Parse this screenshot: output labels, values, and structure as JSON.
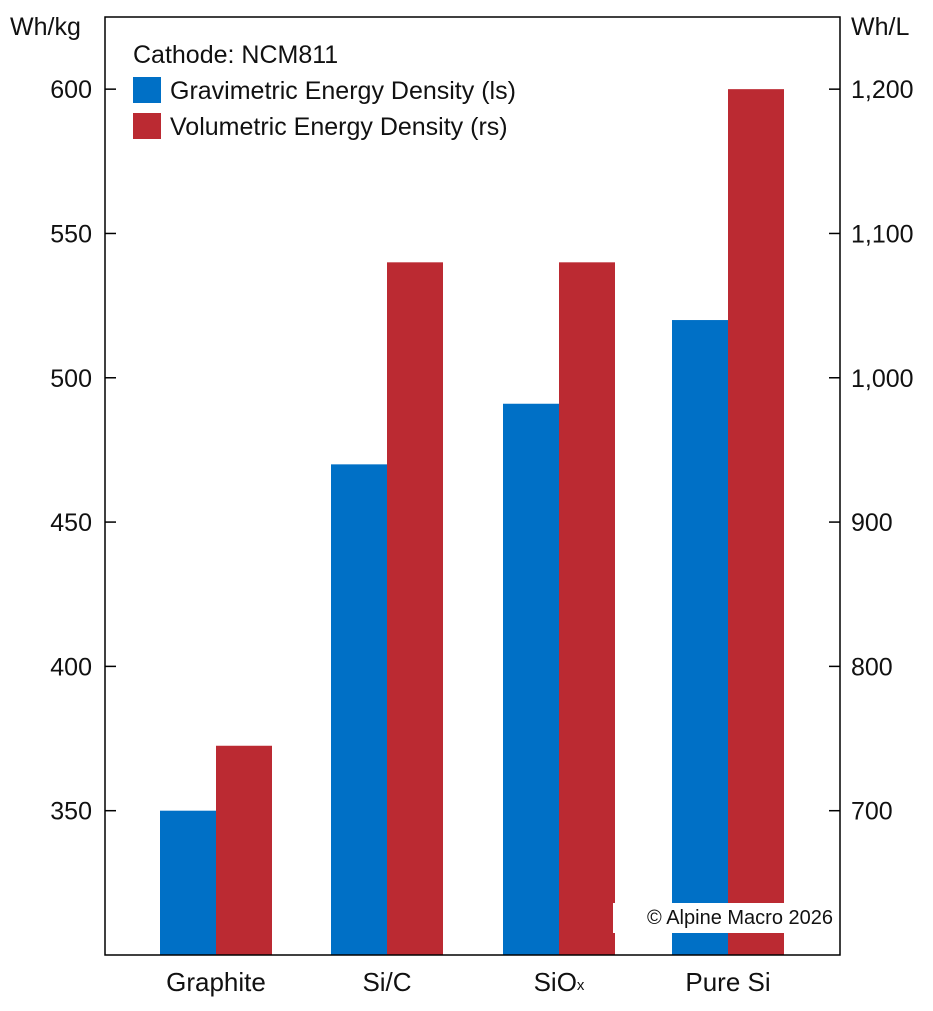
{
  "chart_data": {
    "type": "bar",
    "categories": [
      "Graphite",
      "Si/C",
      "SiO",
      "Pure Si"
    ],
    "category_subscripts": [
      "",
      "",
      "x",
      ""
    ],
    "legend_title": "Cathode: NCM811",
    "legend_placement": "top-left",
    "left_axis": {
      "unit": "Wh/kg",
      "ticks": [
        350,
        400,
        450,
        500,
        550,
        600
      ],
      "tick_labels": [
        "350",
        "400",
        "450",
        "500",
        "550",
        "600"
      ],
      "range": [
        300,
        625
      ]
    },
    "right_axis": {
      "unit": "Wh/L",
      "ticks": [
        700,
        800,
        900,
        1000,
        1100,
        1200
      ],
      "tick_labels": [
        "700",
        "800",
        "900",
        "1,000",
        "1,100",
        "1,200"
      ],
      "range": [
        600,
        1250
      ]
    },
    "series": [
      {
        "name": "Gravimetric Energy Density (ls)",
        "axis": "left",
        "color": "#0070c6",
        "values": [
          350,
          470,
          491,
          520
        ]
      },
      {
        "name": "Volumetric Energy Density (rs)",
        "axis": "right",
        "color": "#bb2a32",
        "values": [
          745,
          1080,
          1080,
          1200
        ]
      }
    ],
    "grid": false,
    "copyright": "© Alpine Macro 2026"
  }
}
